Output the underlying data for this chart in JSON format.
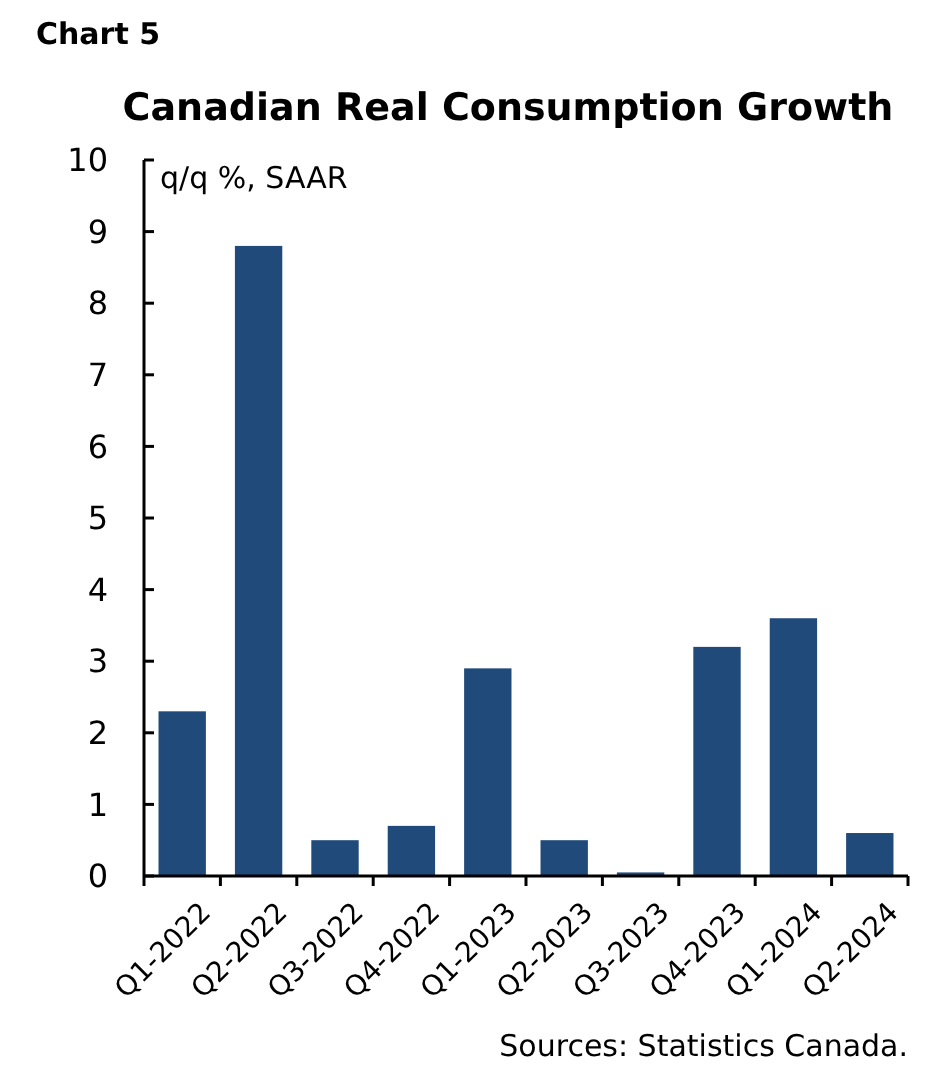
{
  "chart_data": {
    "type": "bar",
    "title": "Canadian Real Consumption Growth",
    "ylabel": "q/q %, SAAR",
    "categories": [
      "Q1-2022",
      "Q2-2022",
      "Q3-2022",
      "Q4-2022",
      "Q1-2023",
      "Q2-2023",
      "Q3-2023",
      "Q4-2023",
      "Q1-2024",
      "Q2-2024"
    ],
    "values": [
      2.3,
      8.8,
      0.5,
      0.7,
      2.9,
      0.5,
      0.05,
      3.2,
      3.6,
      0.6
    ],
    "color": "#204a7a",
    "ylim": [
      0,
      10
    ],
    "yticks": [
      0,
      1,
      2,
      3,
      4,
      5,
      6,
      7,
      8,
      9,
      10
    ],
    "grid": false,
    "annotations": [
      "Chart 5",
      "Sources: Statistics Canada."
    ]
  }
}
